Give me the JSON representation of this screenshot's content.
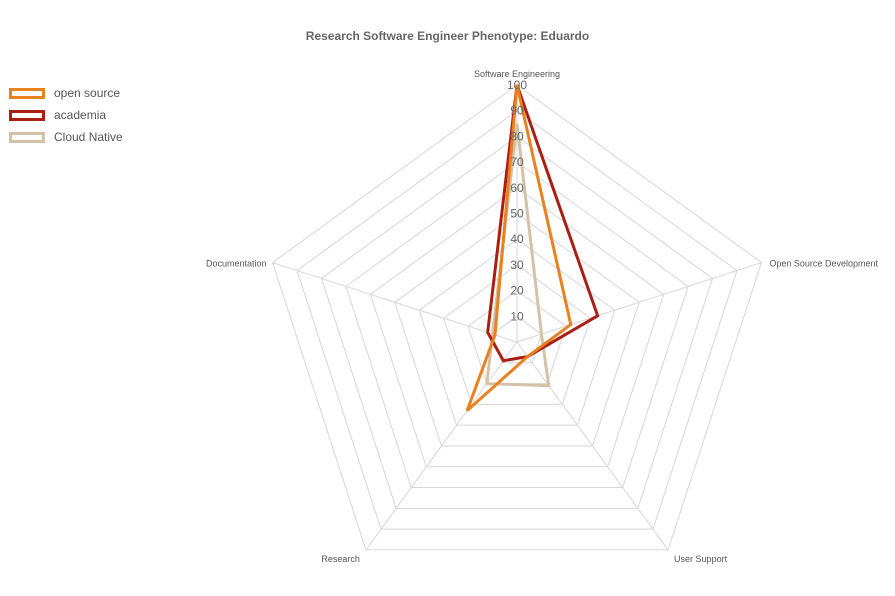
{
  "chart_data": {
    "type": "radar",
    "title": "Research Software Engineer Phenotype: Eduardo",
    "axes": [
      "Software Engineering",
      "Open Source Development",
      "User Support",
      "Research",
      "Documentation"
    ],
    "range": [
      0,
      100
    ],
    "ticks": [
      "10",
      "20",
      "30",
      "40",
      "50",
      "60",
      "70",
      "80",
      "90",
      "100"
    ],
    "legend_position": "top-left",
    "series": [
      {
        "name": "open source",
        "color": "#e8811f",
        "values": [
          100,
          22,
          7,
          33,
          9
        ]
      },
      {
        "name": "academia",
        "color": "#aa1f14",
        "values": [
          100,
          33,
          7,
          9,
          12
        ]
      },
      {
        "name": "Cloud Native",
        "color": "#d4c2a8",
        "values": [
          85,
          10,
          21,
          20,
          10
        ]
      }
    ]
  }
}
